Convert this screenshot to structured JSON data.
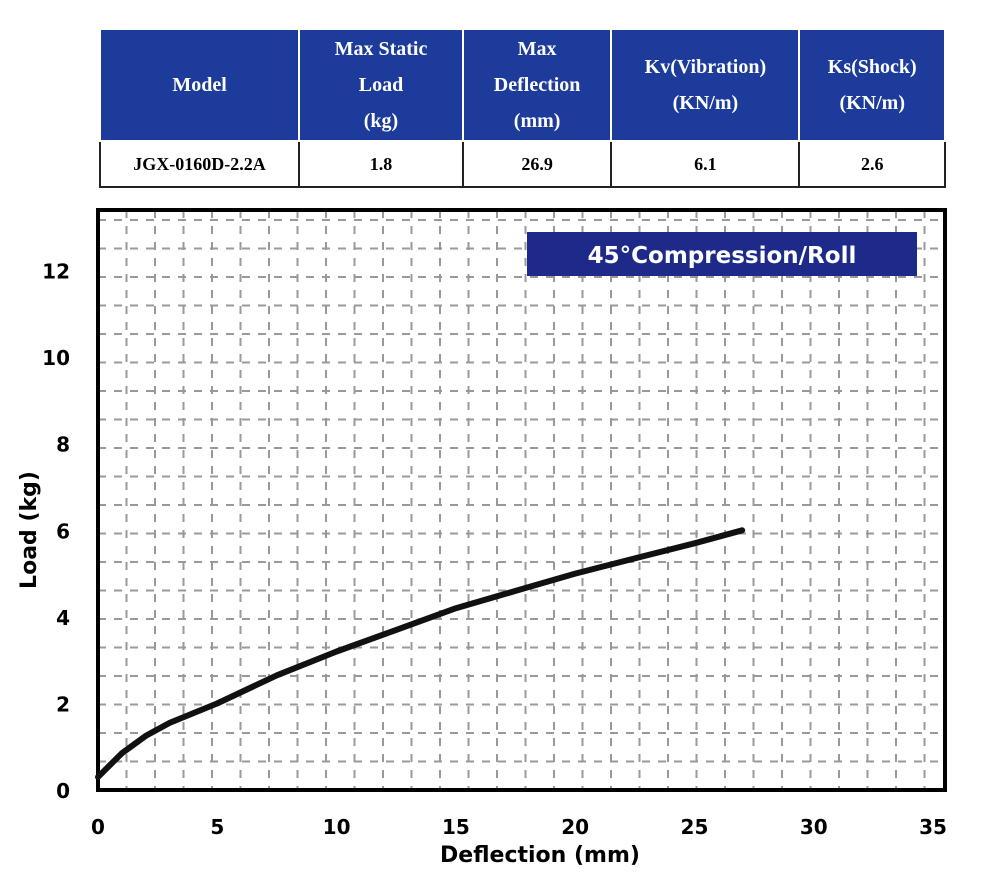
{
  "table": {
    "headers": [
      [
        "Model"
      ],
      [
        "Max Static",
        "Load",
        "(kg)"
      ],
      [
        "Max",
        "Deflection",
        "(mm)"
      ],
      [
        "Kv(Vibration)",
        "(KN/m)"
      ],
      [
        "Ks(Shock)",
        "(KN/m)"
      ]
    ],
    "rows": [
      [
        "JGX-0160D-2.2A",
        "1.8",
        "26.9",
        "6.1",
        "2.6"
      ]
    ],
    "header_color": "#1d3b9a"
  },
  "chart_data": {
    "type": "line",
    "title": "45°Compression/Roll",
    "xlabel": "Deflection (mm)",
    "ylabel": "Load (kg)",
    "xlim": [
      0,
      35.5
    ],
    "ylim": [
      0,
      13.4
    ],
    "xticks": [
      0,
      5,
      10,
      15,
      20,
      25,
      30,
      35
    ],
    "yticks": [
      0,
      2,
      4,
      6,
      8,
      10,
      12
    ],
    "grid": true,
    "series": [
      {
        "name": "45°Compression/Roll",
        "x": [
          0,
          1,
          2,
          3,
          5,
          7.5,
          10,
          12.5,
          15,
          17.5,
          20,
          22.5,
          25,
          27
        ],
        "y": [
          0.3,
          0.85,
          1.25,
          1.55,
          2.0,
          2.65,
          3.2,
          3.7,
          4.2,
          4.6,
          5.0,
          5.35,
          5.7,
          6.0
        ]
      }
    ],
    "title_bg": "#1d2a8a"
  }
}
